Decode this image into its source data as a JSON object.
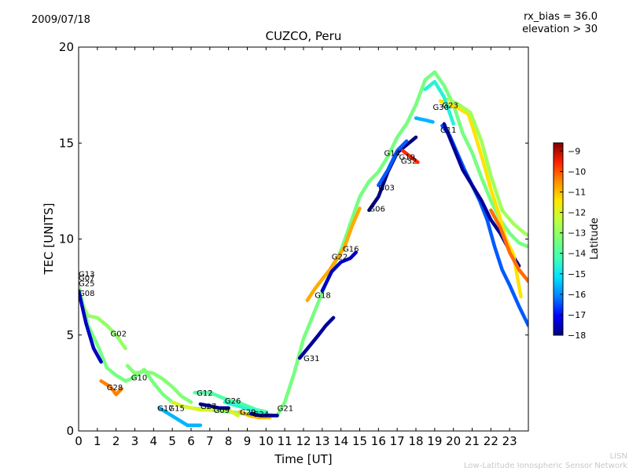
{
  "date": "2009/07/18",
  "params": {
    "bias": "rx_bias = 36.0",
    "elevation": "elevation > 30"
  },
  "footer": {
    "short": "LISN",
    "long": "Low-Latitude Ionospheric Sensor Network"
  },
  "colorbar": {
    "label": "Latitude",
    "min": -18,
    "max": -8.6,
    "ticks": [
      -9,
      -10,
      -11,
      -12,
      -13,
      -14,
      -15,
      -16,
      -17,
      -18
    ],
    "colors": [
      "#00007f",
      "#0000ff",
      "#0080ff",
      "#00e0ff",
      "#40ffb8",
      "#7cff79",
      "#c0ff40",
      "#ffe600",
      "#ff8c00",
      "#ff2000",
      "#7f0000"
    ]
  },
  "chart_data": {
    "type": "scatter",
    "title": "CUZCO, Peru",
    "xlabel": "Time [UT]",
    "ylabel": "TEC [UNITS]",
    "xlim": [
      0,
      24
    ],
    "ylim": [
      0,
      20
    ],
    "xticks": [
      0,
      1,
      2,
      3,
      4,
      5,
      6,
      7,
      8,
      9,
      10,
      11,
      12,
      13,
      14,
      15,
      16,
      17,
      18,
      19,
      20,
      21,
      22,
      23
    ],
    "yticks": [
      0,
      5,
      10,
      15,
      20
    ],
    "tracks": [
      {
        "points": [
          [
            0.0,
            7.5
          ],
          [
            0.5,
            5.5
          ],
          [
            1.0,
            4.5
          ],
          [
            1.5,
            3.3
          ],
          [
            2.0,
            2.9
          ],
          [
            2.5,
            2.6
          ],
          [
            3.0,
            2.8
          ],
          [
            3.5,
            3.2
          ],
          [
            4.0,
            2.5
          ],
          [
            4.5,
            1.9
          ],
          [
            5.0,
            1.5
          ],
          [
            5.5,
            1.3
          ],
          [
            6.0,
            1.2
          ],
          [
            7.0,
            1.1
          ],
          [
            8.0,
            1.0
          ],
          [
            9.0,
            0.9
          ],
          [
            10.0,
            0.8
          ],
          [
            10.6,
            0.8
          ],
          [
            11.0,
            1.5
          ],
          [
            11.5,
            3.0
          ],
          [
            12.0,
            4.8
          ],
          [
            12.5,
            6.0
          ],
          [
            13.0,
            7.2
          ],
          [
            13.5,
            8.4
          ],
          [
            14.0,
            9.4
          ],
          [
            14.5,
            10.8
          ],
          [
            15.0,
            12.2
          ],
          [
            15.5,
            13.0
          ],
          [
            16.0,
            13.5
          ],
          [
            16.5,
            14.3
          ],
          [
            17.0,
            15.3
          ],
          [
            17.5,
            16.0
          ],
          [
            18.0,
            17.0
          ],
          [
            18.5,
            18.3
          ],
          [
            19.0,
            18.7
          ],
          [
            19.5,
            18.0
          ],
          [
            20.0,
            17.0
          ],
          [
            20.5,
            15.5
          ],
          [
            21.0,
            14.5
          ],
          [
            21.5,
            13.2
          ],
          [
            22.0,
            12.0
          ],
          [
            22.5,
            11.0
          ],
          [
            23.0,
            10.3
          ],
          [
            23.5,
            9.8
          ],
          [
            24.0,
            9.6
          ]
        ],
        "lat": -13.4
      },
      {
        "points": [
          [
            0.0,
            7.0
          ],
          [
            0.5,
            6.0
          ],
          [
            1.0,
            5.9
          ],
          [
            1.5,
            5.5
          ],
          [
            2.0,
            5.0
          ],
          [
            2.5,
            4.3
          ]
        ],
        "lat": -13.0
      },
      {
        "points": [
          [
            0.0,
            7.3
          ],
          [
            0.4,
            5.6
          ],
          [
            0.8,
            4.3
          ],
          [
            1.2,
            3.6
          ]
        ],
        "lat": -17.5
      },
      {
        "points": [
          [
            2.6,
            3.4
          ],
          [
            3.0,
            3.0
          ],
          [
            3.5,
            3.1
          ],
          [
            4.0,
            3.0
          ],
          [
            4.5,
            2.7
          ],
          [
            5.0,
            2.3
          ],
          [
            5.5,
            1.8
          ],
          [
            6.0,
            1.5
          ]
        ],
        "lat": -13.2
      },
      {
        "points": [
          [
            1.2,
            2.6
          ],
          [
            1.7,
            2.3
          ],
          [
            2.0,
            1.9
          ],
          [
            2.3,
            2.2
          ]
        ],
        "lat": -10.4
      },
      {
        "points": [
          [
            4.3,
            1.2
          ],
          [
            4.8,
            0.9
          ],
          [
            5.3,
            0.6
          ],
          [
            5.8,
            0.3
          ],
          [
            6.5,
            0.3
          ]
        ],
        "lat": -15.6
      },
      {
        "points": [
          [
            5.0,
            1.5
          ],
          [
            5.5,
            1.3
          ],
          [
            6.0,
            1.2
          ],
          [
            6.5,
            1.1
          ],
          [
            7.0,
            1.1
          ],
          [
            7.5,
            1.2
          ],
          [
            8.0,
            1.1
          ],
          [
            8.5,
            0.8
          ]
        ],
        "lat": -12.0
      },
      {
        "points": [
          [
            6.5,
            1.4
          ],
          [
            7.0,
            1.3
          ],
          [
            7.5,
            1.2
          ],
          [
            8.0,
            1.2
          ]
        ],
        "lat": -17.8
      },
      {
        "points": [
          [
            6.2,
            2.0
          ],
          [
            7.0,
            2.0
          ],
          [
            7.5,
            1.8
          ],
          [
            8.0,
            1.6
          ],
          [
            8.5,
            1.5
          ],
          [
            9.0,
            1.3
          ],
          [
            9.5,
            1.1
          ],
          [
            10.0,
            1.0
          ]
        ],
        "lat": -14.0
      },
      {
        "points": [
          [
            7.8,
            1.5
          ],
          [
            8.5,
            1.3
          ],
          [
            9.2,
            1.1
          ],
          [
            9.8,
            0.9
          ],
          [
            10.4,
            0.8
          ]
        ],
        "lat": -14.5
      },
      {
        "points": [
          [
            8.6,
            1.0
          ],
          [
            9.1,
            0.8
          ],
          [
            9.6,
            0.7
          ],
          [
            10.2,
            0.7
          ]
        ],
        "lat": -11.0
      },
      {
        "points": [
          [
            9.2,
            0.9
          ],
          [
            9.7,
            0.8
          ],
          [
            10.2,
            0.8
          ],
          [
            10.6,
            0.8
          ]
        ],
        "lat": -17.8
      },
      {
        "points": [
          [
            11.8,
            3.8
          ],
          [
            12.3,
            4.4
          ],
          [
            12.8,
            5.0
          ],
          [
            13.2,
            5.5
          ],
          [
            13.6,
            5.9
          ]
        ],
        "lat": -17.8
      },
      {
        "points": [
          [
            12.2,
            6.8
          ],
          [
            12.6,
            7.4
          ],
          [
            13.0,
            7.9
          ],
          [
            13.4,
            8.4
          ],
          [
            13.8,
            9.0
          ],
          [
            14.2,
            9.6
          ],
          [
            14.6,
            10.7
          ],
          [
            15.0,
            11.6
          ]
        ],
        "lat": -10.8
      },
      {
        "points": [
          [
            13.0,
            7.3
          ],
          [
            13.5,
            8.3
          ],
          [
            14.0,
            8.8
          ],
          [
            14.5,
            9.0
          ],
          [
            14.8,
            9.3
          ]
        ],
        "lat": -17.5
      },
      {
        "points": [
          [
            15.5,
            11.5
          ],
          [
            16.0,
            12.2
          ],
          [
            16.5,
            13.5
          ],
          [
            17.0,
            14.5
          ],
          [
            17.5,
            14.9
          ],
          [
            18.0,
            15.3
          ]
        ],
        "lat": -18.0
      },
      {
        "points": [
          [
            16.0,
            12.8
          ],
          [
            16.5,
            13.6
          ],
          [
            17.0,
            14.6
          ],
          [
            17.5,
            15.1
          ]
        ],
        "lat": -16.4
      },
      {
        "points": [
          [
            17.3,
            14.6
          ],
          [
            17.7,
            14.3
          ],
          [
            18.1,
            14.0
          ]
        ],
        "lat": -9.6
      },
      {
        "points": [
          [
            18.0,
            16.3
          ],
          [
            18.5,
            16.2
          ],
          [
            18.9,
            16.1
          ]
        ],
        "lat": -15.6
      },
      {
        "points": [
          [
            19.4,
            15.9
          ],
          [
            19.8,
            15.4
          ],
          [
            20.2,
            14.5
          ],
          [
            20.6,
            13.6
          ],
          [
            21.0,
            12.8
          ],
          [
            21.4,
            12.0
          ],
          [
            21.8,
            11.0
          ],
          [
            22.2,
            9.6
          ],
          [
            22.6,
            8.4
          ],
          [
            23.0,
            7.6
          ],
          [
            23.5,
            6.5
          ],
          [
            24.0,
            5.5
          ]
        ],
        "lat": -16.4
      },
      {
        "points": [
          [
            19.5,
            16.0
          ],
          [
            20.0,
            14.8
          ],
          [
            20.5,
            13.6
          ],
          [
            21.0,
            12.8
          ],
          [
            21.5,
            12.0
          ],
          [
            22.0,
            11.0
          ],
          [
            22.5,
            10.3
          ],
          [
            23.0,
            9.4
          ],
          [
            23.5,
            8.6
          ]
        ],
        "lat": -17.8
      },
      {
        "points": [
          [
            19.3,
            17.2
          ],
          [
            19.8,
            17.0
          ],
          [
            20.3,
            16.8
          ],
          [
            20.8,
            16.5
          ],
          [
            21.2,
            15.3
          ],
          [
            21.6,
            14.0
          ],
          [
            22.0,
            12.6
          ],
          [
            22.4,
            11.4
          ],
          [
            22.8,
            10.0
          ],
          [
            23.2,
            9.2
          ],
          [
            23.6,
            7.0
          ]
        ],
        "lat": -11.4
      },
      {
        "points": [
          [
            19.7,
            17.3
          ],
          [
            20.3,
            17.0
          ],
          [
            20.9,
            16.6
          ],
          [
            21.5,
            15.1
          ],
          [
            22.0,
            13.3
          ],
          [
            22.6,
            11.5
          ],
          [
            23.2,
            10.8
          ],
          [
            23.8,
            10.3
          ],
          [
            24.0,
            10.2
          ]
        ],
        "lat": -12.8
      },
      {
        "points": [
          [
            22.0,
            11.5
          ],
          [
            22.5,
            10.6
          ],
          [
            23.0,
            9.3
          ],
          [
            23.5,
            8.4
          ],
          [
            24.0,
            7.8
          ]
        ],
        "lat": -10.2
      },
      {
        "points": [
          [
            18.5,
            17.8
          ],
          [
            19.0,
            18.2
          ],
          [
            19.5,
            17.4
          ],
          [
            20.0,
            16.0
          ]
        ],
        "lat": -14.6
      }
    ],
    "annotations": [
      {
        "text": "G13",
        "x": 0.0,
        "y": 8.2
      },
      {
        "text": "G07",
        "x": 0.0,
        "y": 8.0
      },
      {
        "text": "G25",
        "x": 0.0,
        "y": 7.7
      },
      {
        "text": "G08",
        "x": 0.0,
        "y": 7.2
      },
      {
        "text": "G02",
        "x": 1.7,
        "y": 5.1
      },
      {
        "text": "G10",
        "x": 2.8,
        "y": 2.8
      },
      {
        "text": "G28",
        "x": 1.5,
        "y": 2.3
      },
      {
        "text": "G17",
        "x": 4.2,
        "y": 1.2
      },
      {
        "text": "G15",
        "x": 4.8,
        "y": 1.2
      },
      {
        "text": "G12",
        "x": 6.3,
        "y": 2.0
      },
      {
        "text": "G27",
        "x": 6.5,
        "y": 1.3
      },
      {
        "text": "G26",
        "x": 7.8,
        "y": 1.6
      },
      {
        "text": "G09",
        "x": 7.2,
        "y": 1.1
      },
      {
        "text": "G29",
        "x": 8.6,
        "y": 1.0
      },
      {
        "text": "G24",
        "x": 9.3,
        "y": 0.9
      },
      {
        "text": "G21",
        "x": 10.6,
        "y": 1.2
      },
      {
        "text": "G31",
        "x": 12.0,
        "y": 3.8
      },
      {
        "text": "G18",
        "x": 12.6,
        "y": 7.1
      },
      {
        "text": "G22",
        "x": 13.5,
        "y": 9.1
      },
      {
        "text": "G16",
        "x": 14.1,
        "y": 9.5
      },
      {
        "text": "G06",
        "x": 15.5,
        "y": 11.6
      },
      {
        "text": "G03",
        "x": 16.0,
        "y": 12.7
      },
      {
        "text": "G14",
        "x": 16.3,
        "y": 14.5
      },
      {
        "text": "G19",
        "x": 17.1,
        "y": 14.3
      },
      {
        "text": "G32",
        "x": 17.2,
        "y": 14.1
      },
      {
        "text": "G11",
        "x": 19.3,
        "y": 15.7
      },
      {
        "text": "G30",
        "x": 18.9,
        "y": 16.9
      },
      {
        "text": "G23",
        "x": 19.4,
        "y": 17.0
      }
    ]
  }
}
